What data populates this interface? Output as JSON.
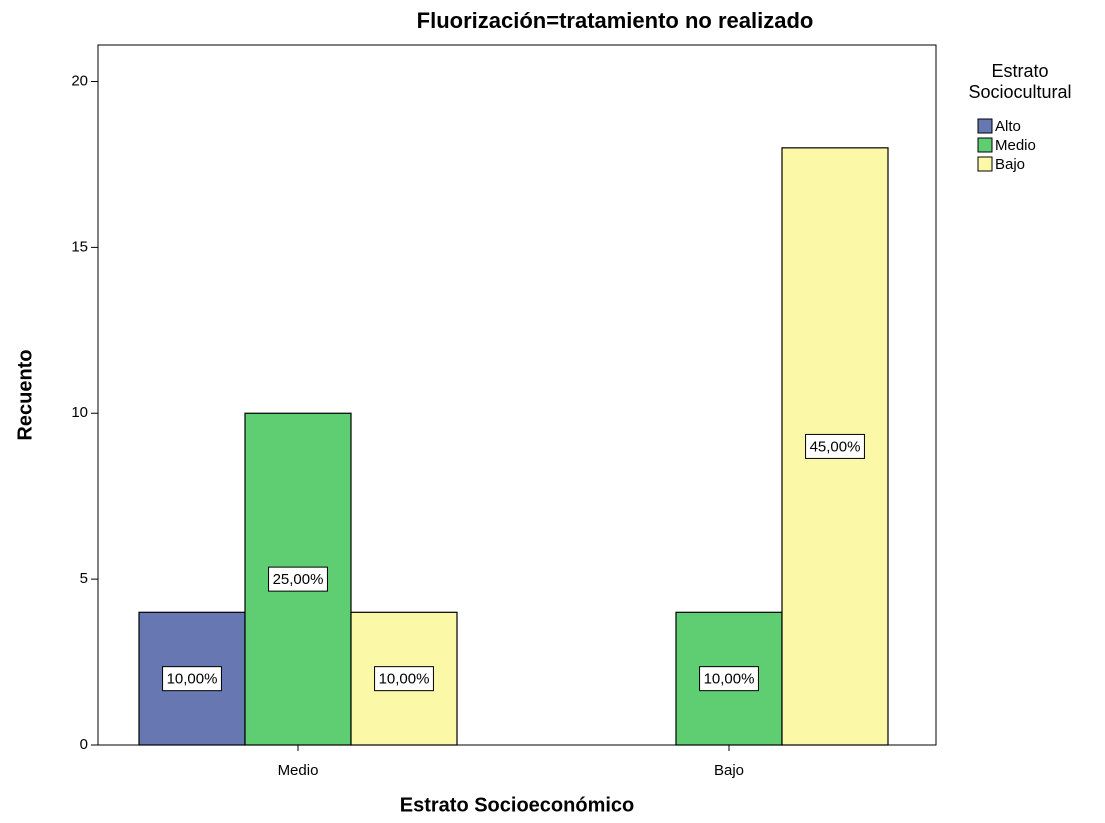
{
  "chart_data": {
    "type": "bar",
    "title": "Fluorización=tratamiento no realizado",
    "x_label": "Estrato Socioeconómico",
    "y_label": "Recuento",
    "legend_title": [
      "Estrato",
      "Sociocultural"
    ],
    "legend": "right",
    "categories": [
      "Medio",
      "Bajo"
    ],
    "series": [
      {
        "name": "Alto",
        "color": "#6677b1",
        "values": [
          4,
          null
        ],
        "data_labels": [
          "10,00%",
          null
        ]
      },
      {
        "name": "Medio",
        "color": "#5fcd72",
        "values": [
          10,
          4
        ],
        "data_labels": [
          "25,00%",
          "10,00%"
        ]
      },
      {
        "name": "Bajo",
        "color": "#fbf8a8",
        "values": [
          4,
          18
        ],
        "data_labels": [
          "10,00%",
          "45,00%"
        ]
      }
    ],
    "ylim": [
      0,
      21.1
    ],
    "yticks": [
      0,
      5,
      10,
      15,
      20
    ],
    "grid": false
  }
}
